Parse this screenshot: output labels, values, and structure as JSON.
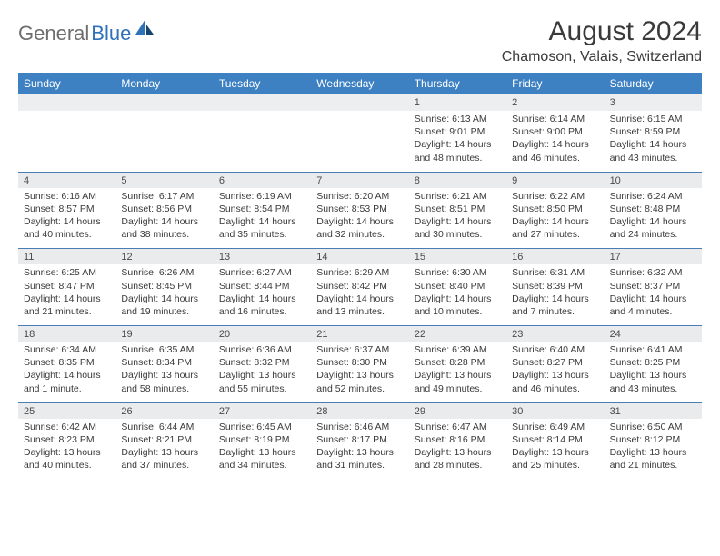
{
  "brand": {
    "name1": "General",
    "name2": "Blue"
  },
  "title": {
    "month": "August 2024",
    "location": "Chamoson, Valais, Switzerland"
  },
  "colors": {
    "header_bg": "#3d81c3",
    "header_text": "#ffffff",
    "daynum_bg": "#e9ebed",
    "border": "#4a7db5",
    "text": "#3a3a3a",
    "logo_gray": "#6e6e6e",
    "logo_blue": "#2f72b8"
  },
  "weekdays": [
    "Sunday",
    "Monday",
    "Tuesday",
    "Wednesday",
    "Thursday",
    "Friday",
    "Saturday"
  ],
  "weeks": [
    [
      null,
      null,
      null,
      null,
      {
        "n": "1",
        "sr": "6:13 AM",
        "ss": "9:01 PM",
        "dl": "14 hours and 48 minutes."
      },
      {
        "n": "2",
        "sr": "6:14 AM",
        "ss": "9:00 PM",
        "dl": "14 hours and 46 minutes."
      },
      {
        "n": "3",
        "sr": "6:15 AM",
        "ss": "8:59 PM",
        "dl": "14 hours and 43 minutes."
      }
    ],
    [
      {
        "n": "4",
        "sr": "6:16 AM",
        "ss": "8:57 PM",
        "dl": "14 hours and 40 minutes."
      },
      {
        "n": "5",
        "sr": "6:17 AM",
        "ss": "8:56 PM",
        "dl": "14 hours and 38 minutes."
      },
      {
        "n": "6",
        "sr": "6:19 AM",
        "ss": "8:54 PM",
        "dl": "14 hours and 35 minutes."
      },
      {
        "n": "7",
        "sr": "6:20 AM",
        "ss": "8:53 PM",
        "dl": "14 hours and 32 minutes."
      },
      {
        "n": "8",
        "sr": "6:21 AM",
        "ss": "8:51 PM",
        "dl": "14 hours and 30 minutes."
      },
      {
        "n": "9",
        "sr": "6:22 AM",
        "ss": "8:50 PM",
        "dl": "14 hours and 27 minutes."
      },
      {
        "n": "10",
        "sr": "6:24 AM",
        "ss": "8:48 PM",
        "dl": "14 hours and 24 minutes."
      }
    ],
    [
      {
        "n": "11",
        "sr": "6:25 AM",
        "ss": "8:47 PM",
        "dl": "14 hours and 21 minutes."
      },
      {
        "n": "12",
        "sr": "6:26 AM",
        "ss": "8:45 PM",
        "dl": "14 hours and 19 minutes."
      },
      {
        "n": "13",
        "sr": "6:27 AM",
        "ss": "8:44 PM",
        "dl": "14 hours and 16 minutes."
      },
      {
        "n": "14",
        "sr": "6:29 AM",
        "ss": "8:42 PM",
        "dl": "14 hours and 13 minutes."
      },
      {
        "n": "15",
        "sr": "6:30 AM",
        "ss": "8:40 PM",
        "dl": "14 hours and 10 minutes."
      },
      {
        "n": "16",
        "sr": "6:31 AM",
        "ss": "8:39 PM",
        "dl": "14 hours and 7 minutes."
      },
      {
        "n": "17",
        "sr": "6:32 AM",
        "ss": "8:37 PM",
        "dl": "14 hours and 4 minutes."
      }
    ],
    [
      {
        "n": "18",
        "sr": "6:34 AM",
        "ss": "8:35 PM",
        "dl": "14 hours and 1 minute."
      },
      {
        "n": "19",
        "sr": "6:35 AM",
        "ss": "8:34 PM",
        "dl": "13 hours and 58 minutes."
      },
      {
        "n": "20",
        "sr": "6:36 AM",
        "ss": "8:32 PM",
        "dl": "13 hours and 55 minutes."
      },
      {
        "n": "21",
        "sr": "6:37 AM",
        "ss": "8:30 PM",
        "dl": "13 hours and 52 minutes."
      },
      {
        "n": "22",
        "sr": "6:39 AM",
        "ss": "8:28 PM",
        "dl": "13 hours and 49 minutes."
      },
      {
        "n": "23",
        "sr": "6:40 AM",
        "ss": "8:27 PM",
        "dl": "13 hours and 46 minutes."
      },
      {
        "n": "24",
        "sr": "6:41 AM",
        "ss": "8:25 PM",
        "dl": "13 hours and 43 minutes."
      }
    ],
    [
      {
        "n": "25",
        "sr": "6:42 AM",
        "ss": "8:23 PM",
        "dl": "13 hours and 40 minutes."
      },
      {
        "n": "26",
        "sr": "6:44 AM",
        "ss": "8:21 PM",
        "dl": "13 hours and 37 minutes."
      },
      {
        "n": "27",
        "sr": "6:45 AM",
        "ss": "8:19 PM",
        "dl": "13 hours and 34 minutes."
      },
      {
        "n": "28",
        "sr": "6:46 AM",
        "ss": "8:17 PM",
        "dl": "13 hours and 31 minutes."
      },
      {
        "n": "29",
        "sr": "6:47 AM",
        "ss": "8:16 PM",
        "dl": "13 hours and 28 minutes."
      },
      {
        "n": "30",
        "sr": "6:49 AM",
        "ss": "8:14 PM",
        "dl": "13 hours and 25 minutes."
      },
      {
        "n": "31",
        "sr": "6:50 AM",
        "ss": "8:12 PM",
        "dl": "13 hours and 21 minutes."
      }
    ]
  ],
  "labels": {
    "sunrise": "Sunrise: ",
    "sunset": "Sunset: ",
    "daylight": "Daylight: "
  }
}
